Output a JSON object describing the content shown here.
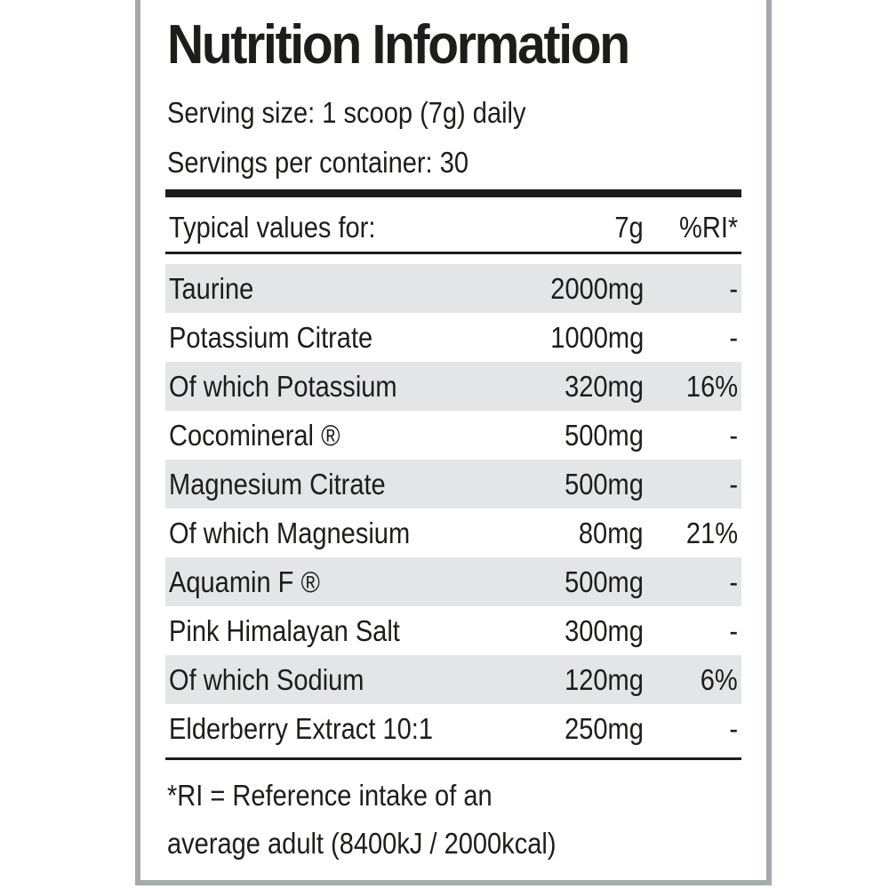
{
  "title": "Nutrition Information",
  "serving_size": "Serving size: 1 scoop (7g) daily",
  "servings_per_container": "Servings per container: 30",
  "table_header": {
    "label": "Typical values for:",
    "amount": "7g",
    "ri": "%RI*"
  },
  "rows": [
    {
      "name": "Taurine",
      "amount": "2000mg",
      "ri": "-"
    },
    {
      "name": "Potassium Citrate",
      "amount": "1000mg",
      "ri": "-"
    },
    {
      "name": "Of which Potassium",
      "amount": "320mg",
      "ri": "16%"
    },
    {
      "name": "Cocomineral ®",
      "amount": "500mg",
      "ri": "-"
    },
    {
      "name": "Magnesium Citrate",
      "amount": "500mg",
      "ri": "-"
    },
    {
      "name": "Of which Magnesium",
      "amount": "80mg",
      "ri": "21%"
    },
    {
      "name": "Aquamin F ®",
      "amount": "500mg",
      "ri": "-"
    },
    {
      "name": "Pink Himalayan Salt",
      "amount": "300mg",
      "ri": "-"
    },
    {
      "name": "Of which Sodium",
      "amount": "120mg",
      "ri": "6%"
    },
    {
      "name": "Elderberry Extract 10:1",
      "amount": "250mg",
      "ri": "-"
    }
  ],
  "footnote_line1": "*RI = Reference intake of an",
  "footnote_line2": "average adult (8400kJ / 2000kcal)",
  "colors": {
    "text": "#1d1d1b",
    "border": "#a6aaae",
    "row_shade": "#e4e5e6"
  }
}
